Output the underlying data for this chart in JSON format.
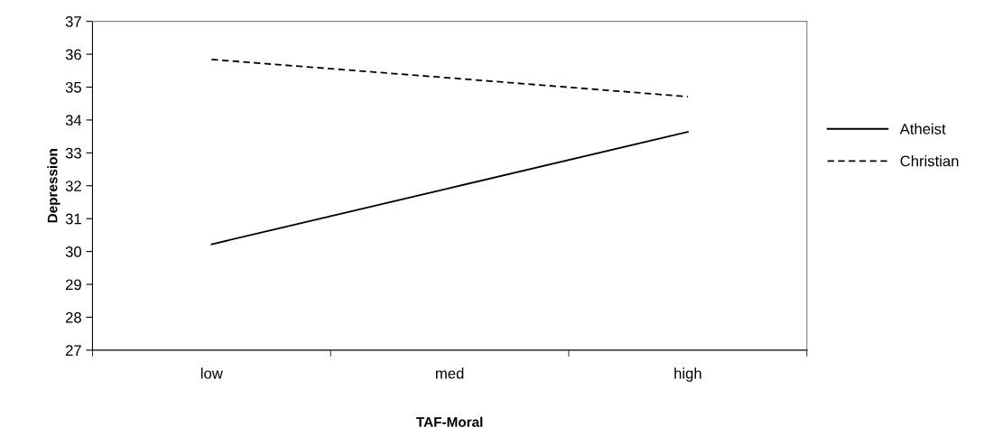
{
  "chart_data": {
    "type": "line",
    "xlabel": "TAF-Moral",
    "ylabel": "Depression",
    "categories": [
      "low",
      "med",
      "high"
    ],
    "series": [
      {
        "name": "Atheist",
        "color": "#000000",
        "line_style": "solid",
        "values": [
          30.22,
          31.93,
          33.64
        ]
      },
      {
        "name": "Christian",
        "color": "#000000",
        "line_style": "dashed",
        "values": [
          35.84,
          35.28,
          34.71
        ]
      }
    ],
    "ylim": [
      27,
      37
    ],
    "yticks": [
      27,
      28,
      29,
      30,
      31,
      32,
      33,
      34,
      35,
      36,
      37
    ],
    "grid": false,
    "legend": "right",
    "marker": "none"
  }
}
